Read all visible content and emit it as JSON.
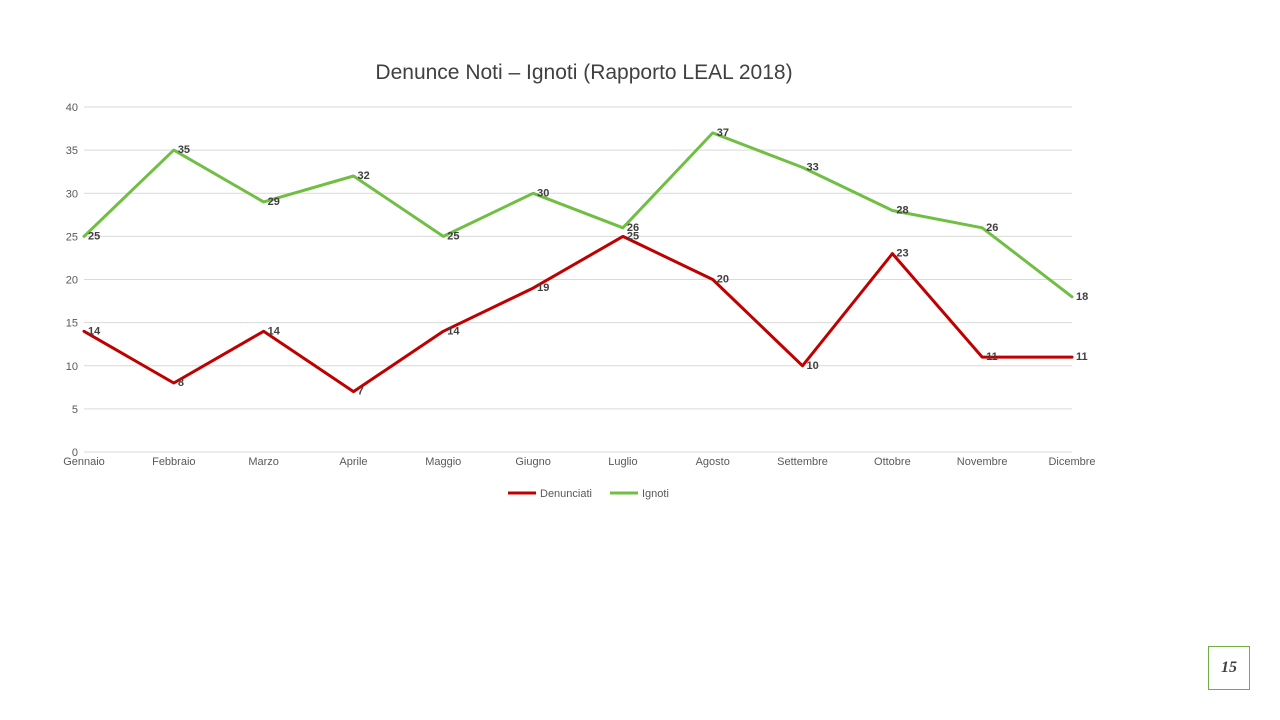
{
  "page_number": "15",
  "chart_data": {
    "type": "line",
    "title": "Denunce Noti – Ignoti (Rapporto LEAL 2018)",
    "xlabel": "",
    "ylabel": "",
    "categories": [
      "Gennaio",
      "Febbraio",
      "Marzo",
      "Aprile",
      "Maggio",
      "Giugno",
      "Luglio",
      "Agosto",
      "Settembre",
      "Ottobre",
      "Novembre",
      "Dicembre"
    ],
    "ylim": [
      0,
      40
    ],
    "yticks": [
      0,
      5,
      10,
      15,
      20,
      25,
      30,
      35,
      40
    ],
    "grid": true,
    "legend": "bottom",
    "series": [
      {
        "name": "Denunciati",
        "color": "#c00000",
        "values": [
          14,
          8,
          14,
          7,
          14,
          19,
          25,
          20,
          10,
          23,
          11,
          11
        ]
      },
      {
        "name": "Ignoti",
        "color": "#70bf44",
        "values": [
          25,
          35,
          29,
          32,
          25,
          30,
          26,
          37,
          33,
          28,
          26,
          18
        ]
      }
    ]
  }
}
